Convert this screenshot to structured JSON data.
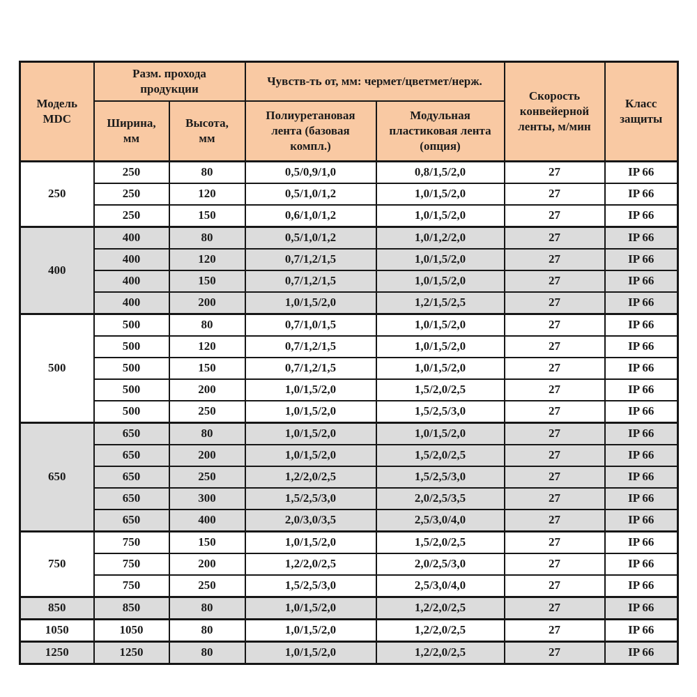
{
  "table": {
    "header": {
      "model": "Модель\nMDC",
      "pass_size": "Разм. прохода\nпродукции",
      "width": "Ширина,\nмм",
      "height": "Высота,\nмм",
      "sensitivity": "Чувств-ть от, мм: чермет/цветмет/нерж.",
      "pu_belt": "Полиуретановая\nлента (базовая\nкомпл.)",
      "modular_belt": "Модульная\nпластиковая лента\n(опция)",
      "speed": "Скорость\nконвейерной\nленты, м/мин",
      "protection": "Класс\nзащиты"
    },
    "colors": {
      "header_bg": "#f9c9a3",
      "shaded_row_bg": "#dcdcdc",
      "row_bg": "#ffffff",
      "border": "#161616",
      "text": "#1b1b1b"
    },
    "groups": [
      {
        "model": "250",
        "shaded": false,
        "rows": [
          {
            "width": "250",
            "height": "80",
            "pu": "0,5/0,9/1,0",
            "modular": "0,8/1,5/2,0",
            "speed": "27",
            "protection": "IP 66"
          },
          {
            "width": "250",
            "height": "120",
            "pu": "0,5/1,0/1,2",
            "modular": "1,0/1,5/2,0",
            "speed": "27",
            "protection": "IP 66"
          },
          {
            "width": "250",
            "height": "150",
            "pu": "0,6/1,0/1,2",
            "modular": "1,0/1,5/2,0",
            "speed": "27",
            "protection": "IP 66"
          }
        ]
      },
      {
        "model": "400",
        "shaded": true,
        "rows": [
          {
            "width": "400",
            "height": "80",
            "pu": "0,5/1,0/1,2",
            "modular": "1,0/1,2/2,0",
            "speed": "27",
            "protection": "IP 66"
          },
          {
            "width": "400",
            "height": "120",
            "pu": "0,7/1,2/1,5",
            "modular": "1,0/1,5/2,0",
            "speed": "27",
            "protection": "IP 66"
          },
          {
            "width": "400",
            "height": "150",
            "pu": "0,7/1,2/1,5",
            "modular": "1,0/1,5/2,0",
            "speed": "27",
            "protection": "IP 66"
          },
          {
            "width": "400",
            "height": "200",
            "pu": "1,0/1,5/2,0",
            "modular": "1,2/1,5/2,5",
            "speed": "27",
            "protection": "IP 66"
          }
        ]
      },
      {
        "model": "500",
        "shaded": false,
        "rows": [
          {
            "width": "500",
            "height": "80",
            "pu": "0,7/1,0/1,5",
            "modular": "1,0/1,5/2,0",
            "speed": "27",
            "protection": "IP 66"
          },
          {
            "width": "500",
            "height": "120",
            "pu": "0,7/1,2/1,5",
            "modular": "1,0/1,5/2,0",
            "speed": "27",
            "protection": "IP 66"
          },
          {
            "width": "500",
            "height": "150",
            "pu": "0,7/1,2/1,5",
            "modular": "1,0/1,5/2,0",
            "speed": "27",
            "protection": "IP 66"
          },
          {
            "width": "500",
            "height": "200",
            "pu": "1,0/1,5/2,0",
            "modular": "1,5/2,0/2,5",
            "speed": "27",
            "protection": "IP 66"
          },
          {
            "width": "500",
            "height": "250",
            "pu": "1,0/1,5/2,0",
            "modular": "1,5/2,5/3,0",
            "speed": "27",
            "protection": "IP 66"
          }
        ]
      },
      {
        "model": "650",
        "shaded": true,
        "rows": [
          {
            "width": "650",
            "height": "80",
            "pu": "1,0/1,5/2,0",
            "modular": "1,0/1,5/2,0",
            "speed": "27",
            "protection": "IP 66"
          },
          {
            "width": "650",
            "height": "200",
            "pu": "1,0/1,5/2,0",
            "modular": "1,5/2,0/2,5",
            "speed": "27",
            "protection": "IP 66"
          },
          {
            "width": "650",
            "height": "250",
            "pu": "1,2/2,0/2,5",
            "modular": "1,5/2,5/3,0",
            "speed": "27",
            "protection": "IP 66"
          },
          {
            "width": "650",
            "height": "300",
            "pu": "1,5/2,5/3,0",
            "modular": "2,0/2,5/3,5",
            "speed": "27",
            "protection": "IP 66"
          },
          {
            "width": "650",
            "height": "400",
            "pu": "2,0/3,0/3,5",
            "modular": "2,5/3,0/4,0",
            "speed": "27",
            "protection": "IP 66"
          }
        ]
      },
      {
        "model": "750",
        "shaded": false,
        "rows": [
          {
            "width": "750",
            "height": "150",
            "pu": "1,0/1,5/2,0",
            "modular": "1,5/2,0/2,5",
            "speed": "27",
            "protection": "IP 66"
          },
          {
            "width": "750",
            "height": "200",
            "pu": "1,2/2,0/2,5",
            "modular": "2,0/2,5/3,0",
            "speed": "27",
            "protection": "IP 66"
          },
          {
            "width": "750",
            "height": "250",
            "pu": "1,5/2,5/3,0",
            "modular": "2,5/3,0/4,0",
            "speed": "27",
            "protection": "IP 66"
          }
        ]
      },
      {
        "model": "850",
        "shaded": true,
        "rows": [
          {
            "width": "850",
            "height": "80",
            "pu": "1,0/1,5/2,0",
            "modular": "1,2/2,0/2,5",
            "speed": "27",
            "protection": "IP 66"
          }
        ]
      },
      {
        "model": "1050",
        "shaded": false,
        "rows": [
          {
            "width": "1050",
            "height": "80",
            "pu": "1,0/1,5/2,0",
            "modular": "1,2/2,0/2,5",
            "speed": "27",
            "protection": "IP 66"
          }
        ]
      },
      {
        "model": "1250",
        "shaded": true,
        "rows": [
          {
            "width": "1250",
            "height": "80",
            "pu": "1,0/1,5/2,0",
            "modular": "1,2/2,0/2,5",
            "speed": "27",
            "protection": "IP 66"
          }
        ]
      }
    ]
  }
}
